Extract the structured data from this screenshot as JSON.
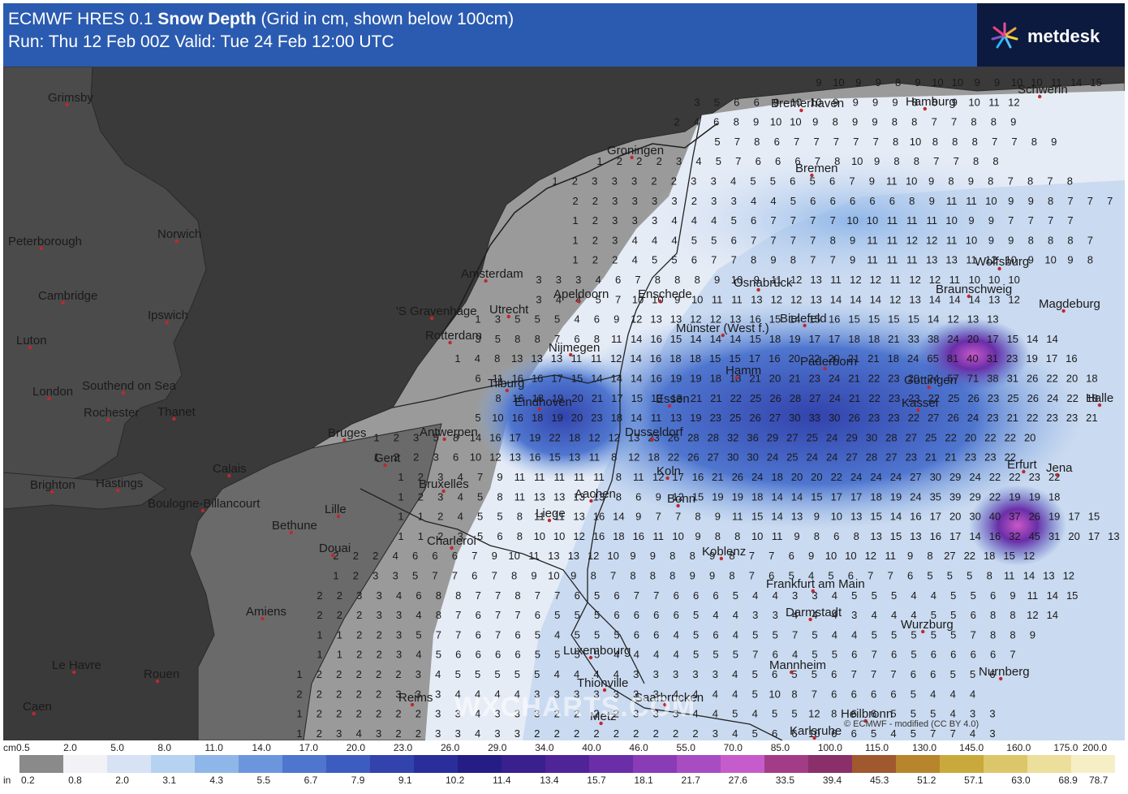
{
  "header": {
    "title_prefix": "ECMWF HRES 0.1 ",
    "title_bold": "Snow Depth",
    "title_suffix": " (Grid in cm, shown below 100cm)",
    "run_line": "Run: Thu 12 Feb 00Z Valid: Tue 24 Feb 12:00 UTC"
  },
  "brand": {
    "name": "metdesk",
    "logo_icon": "metdesk-star-logo"
  },
  "map": {
    "cities": [
      {
        "name": "Grimsby"
      },
      {
        "name": "Peterborough"
      },
      {
        "name": "Norwich"
      },
      {
        "name": "Cambridge"
      },
      {
        "name": "Ipswich"
      },
      {
        "name": "Luton"
      },
      {
        "name": "London"
      },
      {
        "name": "Southend on Sea"
      },
      {
        "name": "Rochester"
      },
      {
        "name": "Thanet"
      },
      {
        "name": "Brighton"
      },
      {
        "name": "Hastings"
      },
      {
        "name": "Calais"
      },
      {
        "name": "Boulogne-Billancourt"
      },
      {
        "name": "Bethune"
      },
      {
        "name": "Lille"
      },
      {
        "name": "Douai"
      },
      {
        "name": "Amiens"
      },
      {
        "name": "Le Havre"
      },
      {
        "name": "Rouen"
      },
      {
        "name": "Caen"
      },
      {
        "name": "Reims"
      },
      {
        "name": "Charleroi"
      },
      {
        "name": "Bruxelles"
      },
      {
        "name": "Gent"
      },
      {
        "name": "Bruges"
      },
      {
        "name": "Antwerpen"
      },
      {
        "name": "Rotterdam"
      },
      {
        "name": "'S Gravenhage"
      },
      {
        "name": "Utrecht"
      },
      {
        "name": "Amsterdam"
      },
      {
        "name": "Apeldoorn"
      },
      {
        "name": "Enschede"
      },
      {
        "name": "Nijmegen"
      },
      {
        "name": "Tilburg"
      },
      {
        "name": "Eindhoven"
      },
      {
        "name": "Groningen"
      },
      {
        "name": "Bremerhaven"
      },
      {
        "name": "Bremen"
      },
      {
        "name": "Hamburg"
      },
      {
        "name": "Schwerin"
      },
      {
        "name": "Osnabrück"
      },
      {
        "name": "Bielefeld"
      },
      {
        "name": "Münster (West f.)"
      },
      {
        "name": "Hamm"
      },
      {
        "name": "Paderborn"
      },
      {
        "name": "Essen"
      },
      {
        "name": "Dusseldorf"
      },
      {
        "name": "Koln"
      },
      {
        "name": "Bonn"
      },
      {
        "name": "Aachen"
      },
      {
        "name": "Liege"
      },
      {
        "name": "Koblenz"
      },
      {
        "name": "Luxembourg"
      },
      {
        "name": "Thionville"
      },
      {
        "name": "Metz"
      },
      {
        "name": "Saarbrucken"
      },
      {
        "name": "Frankfurt am Main"
      },
      {
        "name": "Darmstadt"
      },
      {
        "name": "Mannheim"
      },
      {
        "name": "Wurzburg"
      },
      {
        "name": "Nurnberg"
      },
      {
        "name": "Heilbronn"
      },
      {
        "name": "Karlsruhe"
      },
      {
        "name": "Kassel"
      },
      {
        "name": "Gottingen"
      },
      {
        "name": "Braunschweig"
      },
      {
        "name": "Wolfsburg"
      },
      {
        "name": "Magdeburg"
      },
      {
        "name": "Halle"
      },
      {
        "name": "Erfurt"
      },
      {
        "name": "Jena"
      }
    ]
  },
  "watermark": "WXCHARTS.COM",
  "credit": "© ECMWF - modified (CC BY 4.0)",
  "legend": {
    "unit_cm": "cm",
    "unit_in": "in",
    "cm_labels": [
      "0.5",
      "2.0",
      "5.0",
      "8.0",
      "11.0",
      "14.0",
      "17.0",
      "20.0",
      "23.0",
      "26.0",
      "29.0",
      "34.0",
      "40.0",
      "46.0",
      "55.0",
      "70.0",
      "85.0",
      "100.0",
      "115.0",
      "130.0",
      "145.0",
      "160.0",
      "175.0",
      "200.0"
    ],
    "in_labels": [
      "0.2",
      "0.8",
      "2.0",
      "3.1",
      "4.3",
      "5.5",
      "6.7",
      "7.9",
      "9.1",
      "10.2",
      "11.4",
      "13.4",
      "15.7",
      "18.1",
      "21.7",
      "27.6",
      "33.5",
      "39.4",
      "45.3",
      "51.2",
      "57.1",
      "63.0",
      "68.9",
      "78.7"
    ],
    "colors": [
      "#8a8a8a",
      "#f2f2f6",
      "#d7e3f4",
      "#b5d2f0",
      "#8fb6e8",
      "#6c96dc",
      "#4f76cf",
      "#3d5cc0",
      "#3243ad",
      "#2a2e9a",
      "#241d86",
      "#3a1f8e",
      "#4f2499",
      "#6a2ea8",
      "#8a3bb6",
      "#a84cc2",
      "#c65ccc",
      "#a33c86",
      "#8a2f6a",
      "#a0582f",
      "#b7852c",
      "#c9a93b",
      "#dcc66a",
      "#ecdf9c",
      "#f6efc6"
    ]
  }
}
